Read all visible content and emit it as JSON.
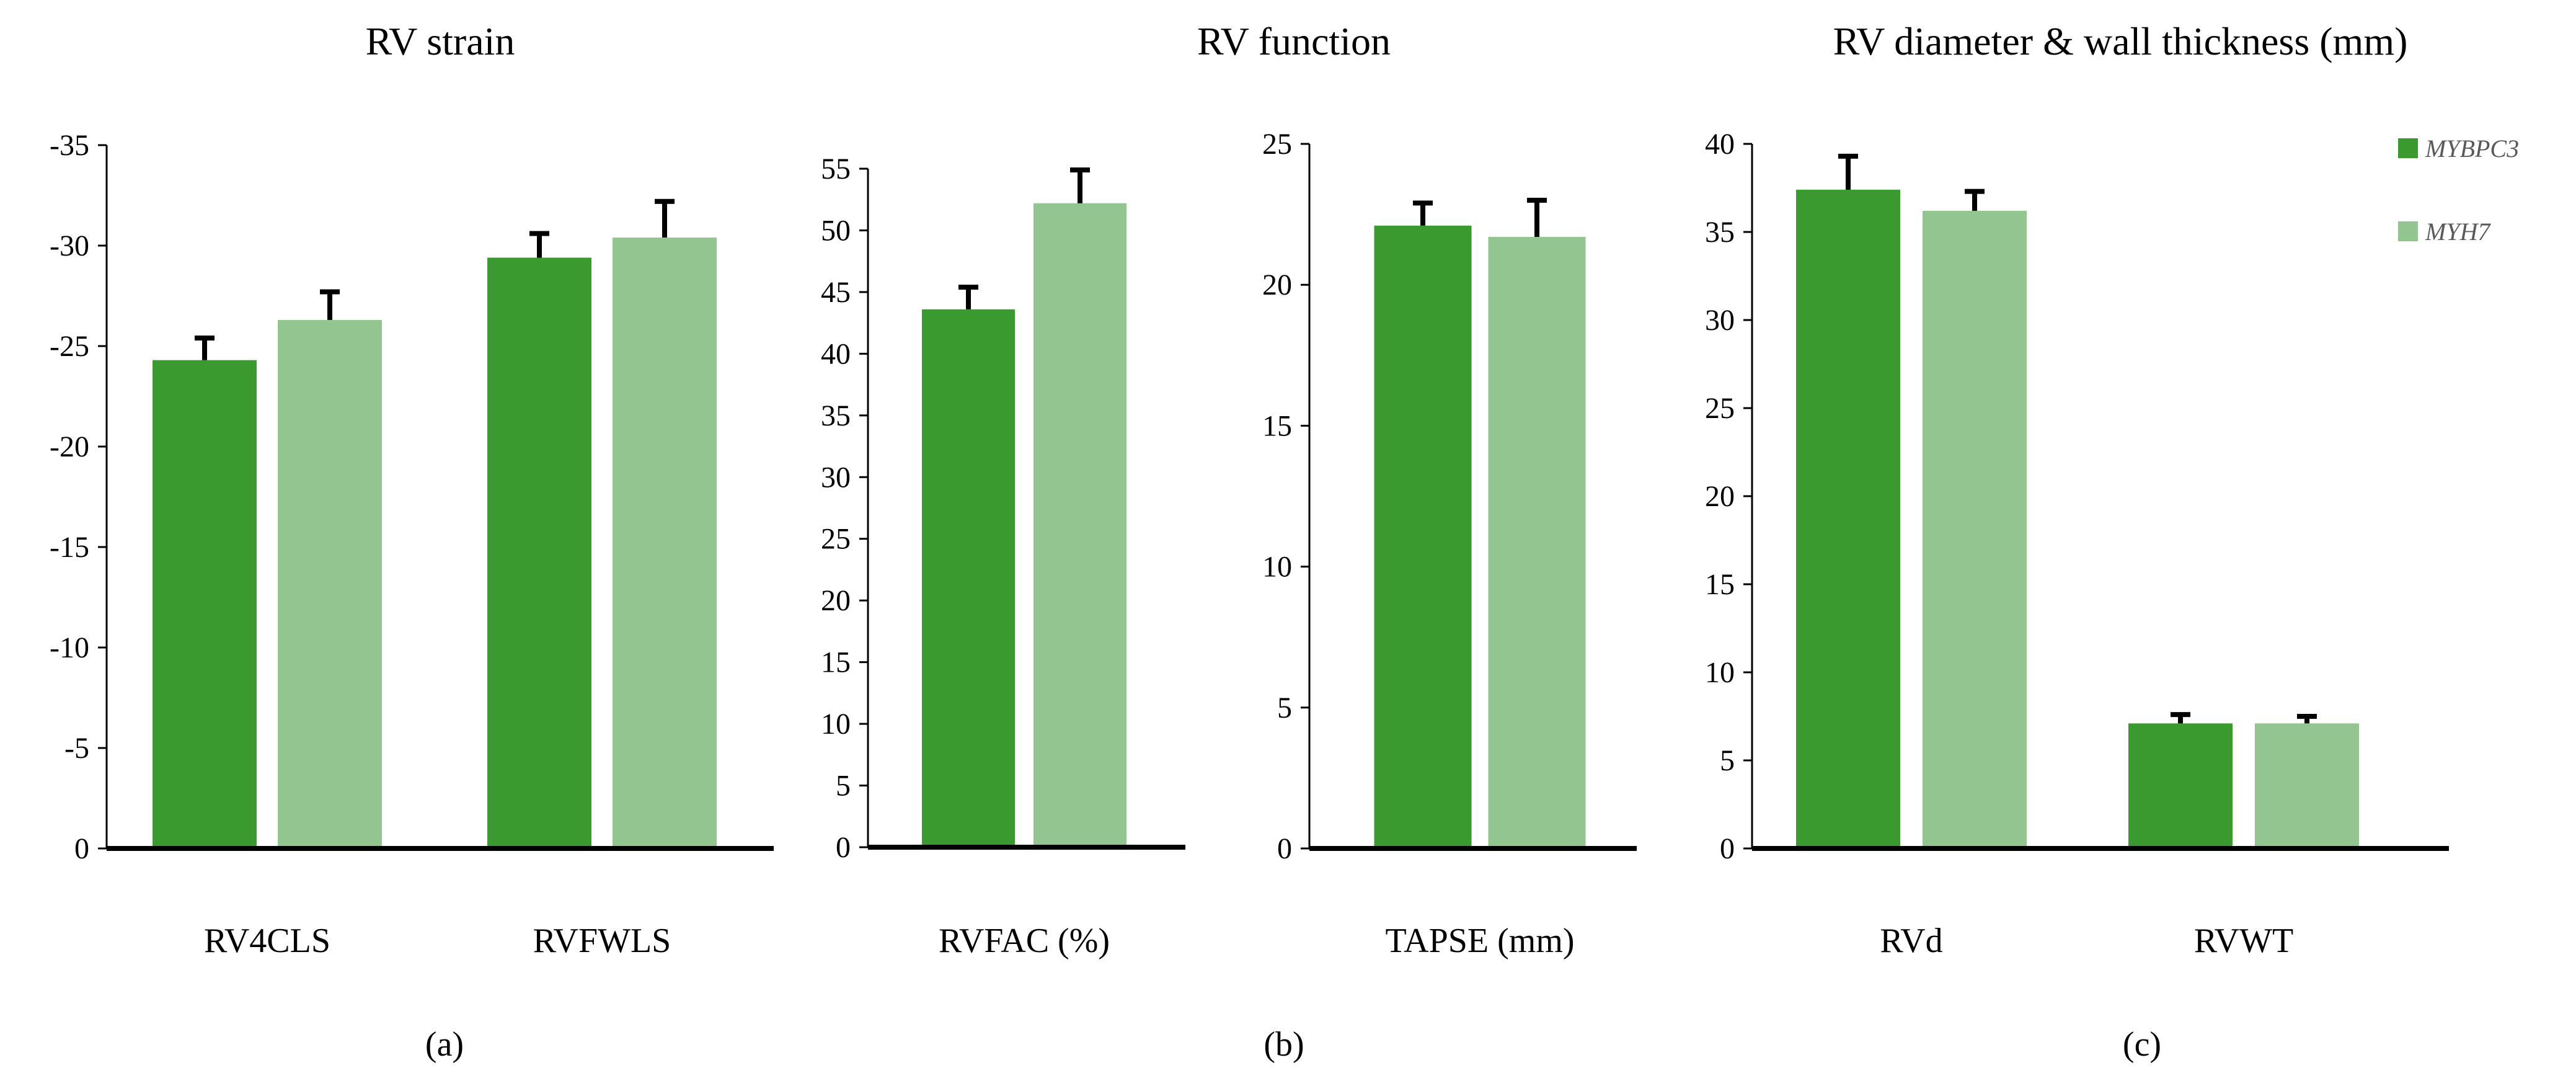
{
  "colors": {
    "MYBPC3": "#3a9a30",
    "MYH7": "#93c590",
    "axis": "#000000",
    "error_bar": "#000000"
  },
  "legend": {
    "placement": "top-right",
    "entries": [
      {
        "name": "MYBPC3",
        "label": "MYBPC3"
      },
      {
        "name": "MYH7",
        "label": "MYH7"
      }
    ]
  },
  "chart_data": [
    {
      "id": "strain",
      "type": "bar",
      "panel_tag": "(a)",
      "title": "RV strain",
      "categories": [
        "RV4CLS",
        "RVFWLS"
      ],
      "series": [
        {
          "name": "MYBPC3",
          "values": [
            -24.3,
            -29.4
          ],
          "errors": [
            1.1,
            1.2
          ]
        },
        {
          "name": "MYH7",
          "values": [
            -26.3,
            -30.4
          ],
          "errors": [
            1.4,
            1.8
          ]
        }
      ],
      "ylim": [
        0,
        -35
      ],
      "yticks": [
        0,
        -5,
        -10,
        -15,
        -20,
        -25,
        -30,
        -35
      ],
      "ytick_labels": [
        "0",
        "-5",
        "-10",
        "-15",
        "-20",
        "-25",
        "-30",
        "-35"
      ]
    },
    {
      "id": "rvfac",
      "type": "bar",
      "panel_tag": "",
      "title": "",
      "categories": [
        "RVFAC (%)"
      ],
      "series": [
        {
          "name": "MYBPC3",
          "values": [
            43.6
          ],
          "errors": [
            1.8
          ]
        },
        {
          "name": "MYH7",
          "values": [
            52.2
          ],
          "errors": [
            2.7
          ]
        }
      ],
      "ylim": [
        0,
        55
      ],
      "yticks": [
        0,
        5,
        10,
        15,
        20,
        25,
        30,
        35,
        40,
        45,
        50,
        55
      ],
      "ytick_labels": [
        "0",
        "5",
        "10",
        "15",
        "20",
        "25",
        "30",
        "35",
        "40",
        "45",
        "50",
        "55"
      ]
    },
    {
      "id": "tapse",
      "type": "bar",
      "panel_tag": "(b)",
      "title": "RV function",
      "categories": [
        "TAPSE (mm)"
      ],
      "series": [
        {
          "name": "MYBPC3",
          "values": [
            22.1
          ],
          "errors": [
            0.8
          ]
        },
        {
          "name": "MYH7",
          "values": [
            21.7
          ],
          "errors": [
            1.3
          ]
        }
      ],
      "ylim": [
        0,
        25
      ],
      "yticks": [
        0,
        5,
        10,
        15,
        20,
        25
      ],
      "ytick_labels": [
        "0",
        "5",
        "10",
        "15",
        "20",
        "25"
      ]
    },
    {
      "id": "diam",
      "type": "bar",
      "panel_tag": "(c)",
      "title": "RV diameter & wall thickness (mm)",
      "categories": [
        "RVd",
        "RVWT"
      ],
      "series": [
        {
          "name": "MYBPC3",
          "values": [
            37.4,
            7.1
          ],
          "errors": [
            1.9,
            0.5
          ]
        },
        {
          "name": "MYH7",
          "values": [
            36.2,
            7.1
          ],
          "errors": [
            1.1,
            0.4
          ]
        }
      ],
      "ylim": [
        0,
        40
      ],
      "yticks": [
        0,
        5,
        10,
        15,
        20,
        25,
        30,
        35,
        40
      ],
      "ytick_labels": [
        "0",
        "5",
        "10",
        "15",
        "20",
        "25",
        "30",
        "35",
        "40"
      ]
    }
  ]
}
